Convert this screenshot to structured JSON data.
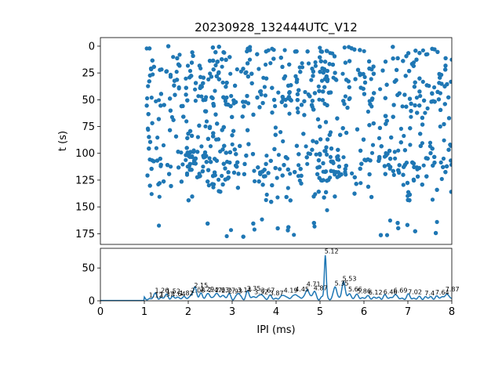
{
  "chart_data": [
    {
      "type": "scatter",
      "title": "20230928_132444UTC_V12",
      "ylabel": "t (s)",
      "xlim": [
        0,
        8
      ],
      "ylim": [
        185,
        -8
      ],
      "yinverted": true,
      "yticks": [
        "0",
        "25",
        "50",
        "75",
        "100",
        "125",
        "150",
        "175"
      ],
      "ytick_values": [
        0,
        25,
        50,
        75,
        100,
        125,
        150,
        175
      ],
      "color": "#1f77b4",
      "grid": false,
      "marker": "filled-circle",
      "note": "dense raster of spike intervals; x range 1.05–8 ms, t range 0–178 s, clustered bands near t≈25, 50, 110 and ~170 s"
    },
    {
      "type": "line",
      "xlabel": "IPI (ms)",
      "xlim": [
        0,
        8
      ],
      "ylim": [
        0,
        80
      ],
      "xticks": [
        "0",
        "1",
        "2",
        "3",
        "4",
        "5",
        "6",
        "7",
        "8"
      ],
      "xtick_values": [
        0,
        1,
        2,
        3,
        4,
        5,
        6,
        7,
        8
      ],
      "yticks": [
        "0",
        "50"
      ],
      "ytick_values": [
        0,
        50
      ],
      "color": "#1f77b4",
      "grid": false,
      "peaks": [
        {
          "x": 1.12,
          "y": 3,
          "label": "1.12"
        },
        {
          "x": 1.26,
          "y": 10,
          "label": "1.26"
        },
        {
          "x": 1.37,
          "y": 4,
          "label": "1.37"
        },
        {
          "x": 1.52,
          "y": 9,
          "label": "1.52"
        },
        {
          "x": 1.64,
          "y": 5,
          "label": "1.64"
        },
        {
          "x": 1.82,
          "y": 6,
          "label": "1.82"
        },
        {
          "x": 2.08,
          "y": 10,
          "label": "2.08"
        },
        {
          "x": 2.15,
          "y": 18,
          "label": "2.15"
        },
        {
          "x": 2.29,
          "y": 12,
          "label": "2.29"
        },
        {
          "x": 2.47,
          "y": 11,
          "label": "2.47"
        },
        {
          "x": 2.63,
          "y": 11,
          "label": "2.63"
        },
        {
          "x": 2.77,
          "y": 10,
          "label": "2.77"
        },
        {
          "x": 2.93,
          "y": 9,
          "label": "2.93"
        },
        {
          "x": 3.14,
          "y": 11,
          "label": "3.14"
        },
        {
          "x": 3.35,
          "y": 13,
          "label": "3.35"
        },
        {
          "x": 3.52,
          "y": 8,
          "label": "3.52"
        },
        {
          "x": 3.67,
          "y": 10,
          "label": "3.67"
        },
        {
          "x": 3.87,
          "y": 6,
          "label": "3.87"
        },
        {
          "x": 4.19,
          "y": 10,
          "label": "4.19"
        },
        {
          "x": 4.45,
          "y": 12,
          "label": "4.45"
        },
        {
          "x": 4.71,
          "y": 20,
          "label": "4.71"
        },
        {
          "x": 4.87,
          "y": 14,
          "label": "4.87"
        },
        {
          "x": 5.12,
          "y": 70,
          "label": "5.12"
        },
        {
          "x": 5.35,
          "y": 21,
          "label": "5.35"
        },
        {
          "x": 5.53,
          "y": 28,
          "label": "5.53"
        },
        {
          "x": 5.66,
          "y": 12,
          "label": "5.66"
        },
        {
          "x": 5.86,
          "y": 9,
          "label": "5.86"
        },
        {
          "x": 6.12,
          "y": 7,
          "label": "6.12"
        },
        {
          "x": 6.46,
          "y": 8,
          "label": "6.46"
        },
        {
          "x": 6.69,
          "y": 10,
          "label": "6.69"
        },
        {
          "x": 7.02,
          "y": 8,
          "label": "7.02"
        },
        {
          "x": 7.4,
          "y": 6,
          "label": "7.4"
        },
        {
          "x": 7.64,
          "y": 7,
          "label": "7.64"
        },
        {
          "x": 7.87,
          "y": 12,
          "label": "7.87"
        }
      ]
    }
  ]
}
